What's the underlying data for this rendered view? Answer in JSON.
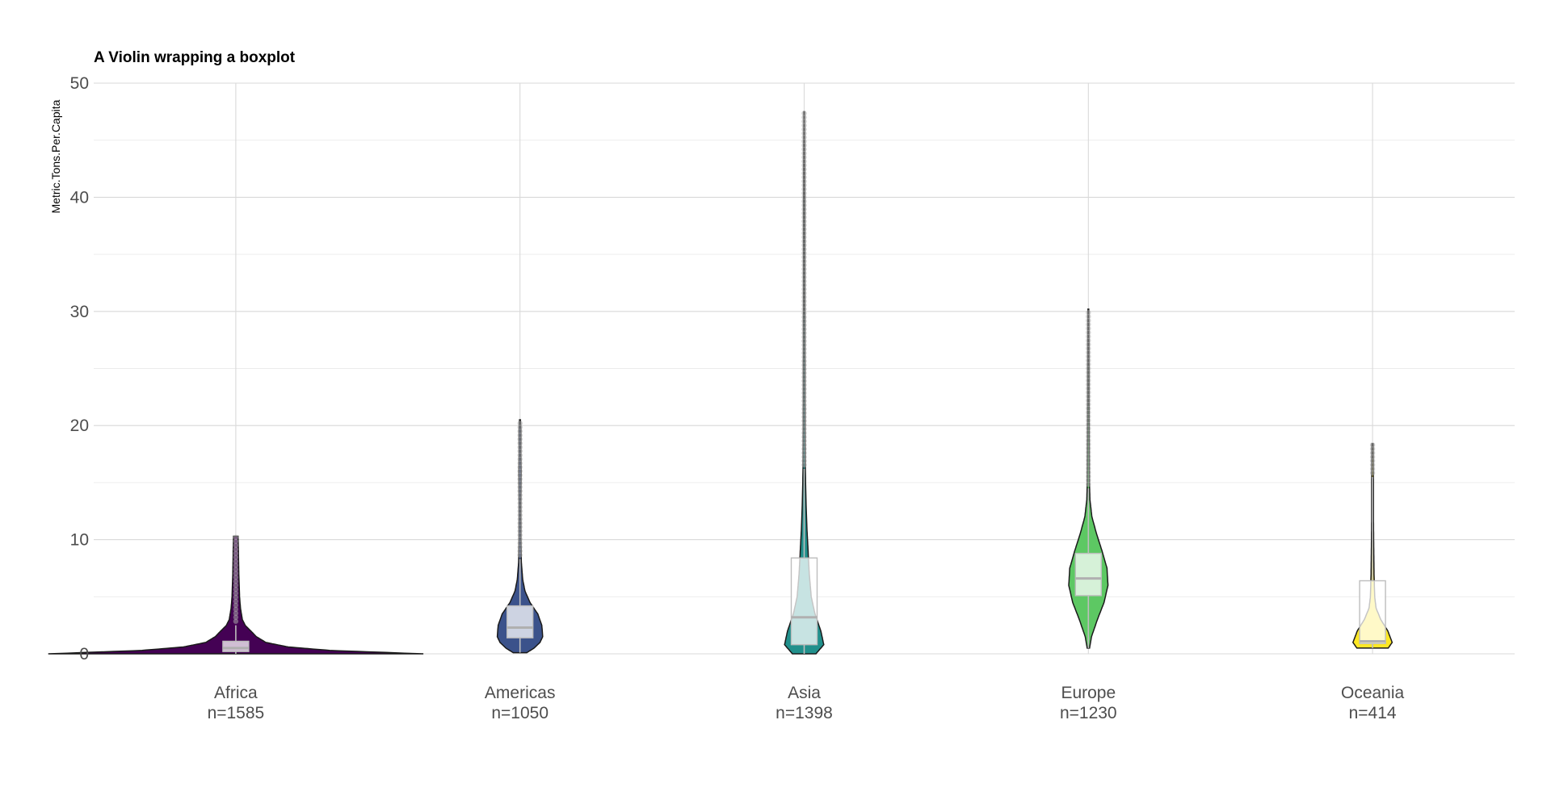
{
  "chart_data": {
    "type": "violin",
    "title": "A Violin wrapping a boxplot",
    "xlabel": "",
    "ylabel": "Metric.Tons.Per.Capita",
    "ylim": [
      0,
      50
    ],
    "yticks": [
      0,
      10,
      20,
      30,
      40,
      50
    ],
    "grid": true,
    "legend": "none",
    "categories": [
      "Africa",
      "Americas",
      "Asia",
      "Europe",
      "Oceania"
    ],
    "counts": [
      "n=1585",
      "n=1050",
      "n=1398",
      "n=1230",
      "n=414"
    ],
    "colors": [
      "#440154",
      "#3b528b",
      "#21908c",
      "#5dc863",
      "#fde725"
    ],
    "series": [
      {
        "category": "Africa",
        "count_label": "n=1585",
        "color": "#440154",
        "min": 0,
        "max": 10.3,
        "box": {
          "q1": 0.2,
          "median": 0.5,
          "q3": 1.1,
          "whisker_low": 0,
          "whisker_high": 2.5
        },
        "density": [
          [
            0,
            1.0
          ],
          [
            0.3,
            0.5
          ],
          [
            0.6,
            0.28
          ],
          [
            1.0,
            0.16
          ],
          [
            1.5,
            0.11
          ],
          [
            2.0,
            0.08
          ],
          [
            2.5,
            0.05
          ],
          [
            3.0,
            0.035
          ],
          [
            4.0,
            0.025
          ],
          [
            5.0,
            0.02
          ],
          [
            7.0,
            0.016
          ],
          [
            9.0,
            0.014
          ],
          [
            10.3,
            0.012
          ]
        ]
      },
      {
        "category": "Americas",
        "count_label": "n=1050",
        "color": "#3b528b",
        "min": 0.1,
        "max": 20.5,
        "box": {
          "q1": 1.4,
          "median": 2.3,
          "q3": 4.2,
          "whisker_low": 0.1,
          "whisker_high": 8.3
        },
        "density": [
          [
            0.1,
            0.3
          ],
          [
            0.5,
            0.62
          ],
          [
            1.0,
            0.88
          ],
          [
            1.5,
            1.0
          ],
          [
            2.5,
            0.96
          ],
          [
            3.5,
            0.78
          ],
          [
            4.5,
            0.44
          ],
          [
            5.5,
            0.22
          ],
          [
            6.5,
            0.12
          ],
          [
            8.0,
            0.06
          ],
          [
            10.0,
            0.04
          ],
          [
            13.0,
            0.035
          ],
          [
            15.0,
            0.045
          ],
          [
            16.0,
            0.05
          ],
          [
            17.5,
            0.035
          ],
          [
            19.5,
            0.04
          ],
          [
            20.5,
            0.02
          ]
        ]
      },
      {
        "category": "Asia",
        "count_label": "n=1398",
        "color": "#21908c",
        "min": 0,
        "max": 47.5,
        "box": {
          "q1": 0.8,
          "median": 3.2,
          "q3": 8.4,
          "whisker_low": 0,
          "whisker_high": 16.2
        },
        "density": [
          [
            0,
            0.6
          ],
          [
            0.8,
            1.0
          ],
          [
            2.0,
            0.85
          ],
          [
            3.5,
            0.55
          ],
          [
            5.0,
            0.36
          ],
          [
            7.0,
            0.26
          ],
          [
            9.0,
            0.2
          ],
          [
            11.0,
            0.14
          ],
          [
            13.0,
            0.1
          ],
          [
            16.0,
            0.06
          ],
          [
            20.0,
            0.045
          ],
          [
            25.0,
            0.04
          ],
          [
            30.0,
            0.035
          ],
          [
            37.0,
            0.035
          ],
          [
            44.0,
            0.025
          ],
          [
            47.5,
            0.015
          ]
        ]
      },
      {
        "category": "Europe",
        "count_label": "n=1230",
        "color": "#5dc863",
        "min": 0.5,
        "max": 30.2,
        "box": {
          "q1": 5.1,
          "median": 6.6,
          "q3": 8.8,
          "whisker_low": 0.5,
          "whisker_high": 14.5
        },
        "density": [
          [
            0.5,
            0.06
          ],
          [
            1.5,
            0.16
          ],
          [
            3.0,
            0.46
          ],
          [
            4.5,
            0.8
          ],
          [
            6.0,
            1.0
          ],
          [
            7.5,
            0.95
          ],
          [
            9.0,
            0.7
          ],
          [
            10.5,
            0.42
          ],
          [
            12.0,
            0.18
          ],
          [
            13.5,
            0.08
          ],
          [
            15.0,
            0.055
          ],
          [
            18.0,
            0.045
          ],
          [
            22.0,
            0.035
          ],
          [
            26.0,
            0.03
          ],
          [
            30.2,
            0.02
          ]
        ]
      },
      {
        "category": "Oceania",
        "count_label": "n=414",
        "color": "#fde725",
        "min": 0.5,
        "max": 18.4,
        "box": {
          "q1": 0.9,
          "median": 1.1,
          "q3": 6.4,
          "whisker_low": 0.5,
          "whisker_high": 15.5
        },
        "density": [
          [
            0.5,
            0.8
          ],
          [
            1.0,
            1.0
          ],
          [
            2.0,
            0.78
          ],
          [
            3.0,
            0.42
          ],
          [
            4.0,
            0.18
          ],
          [
            5.0,
            0.11
          ],
          [
            7.0,
            0.075
          ],
          [
            10.0,
            0.055
          ],
          [
            12.0,
            0.045
          ],
          [
            15.0,
            0.045
          ],
          [
            16.0,
            0.04
          ],
          [
            18.4,
            0.03
          ]
        ]
      }
    ]
  },
  "violin_half_widths": [
    0.66,
    0.08,
    0.069,
    0.069,
    0.069
  ]
}
